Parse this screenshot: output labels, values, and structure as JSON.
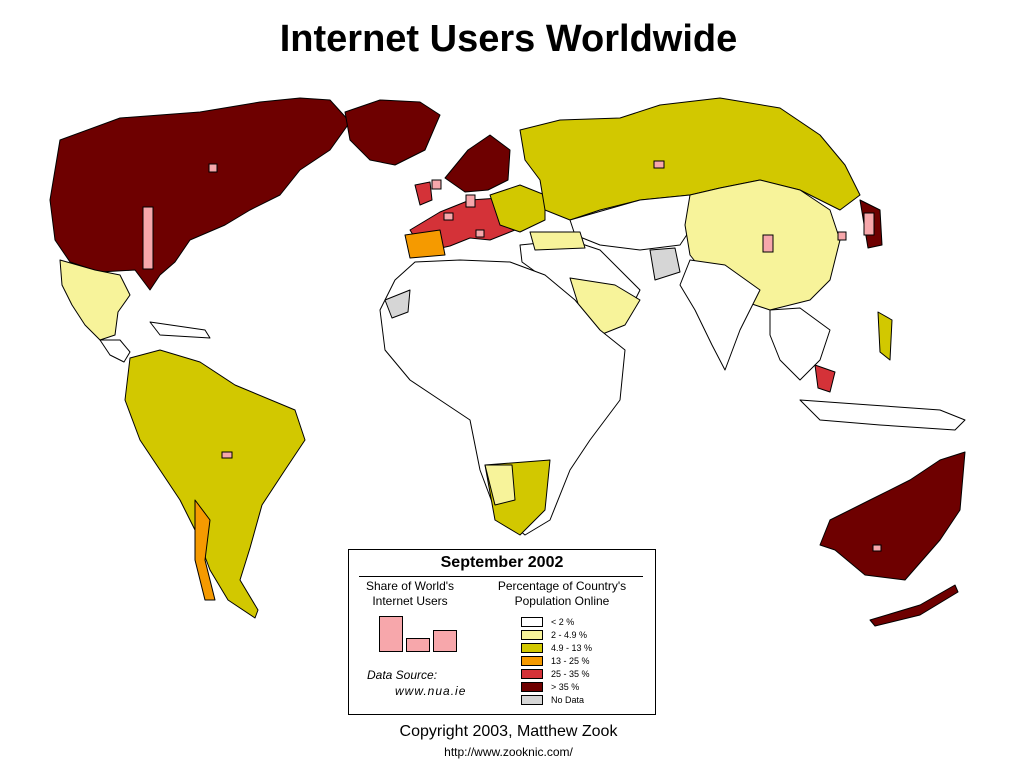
{
  "title": "Internet Users Worldwide",
  "legend": {
    "date": "September 2002",
    "share_heading": "Share of World's\nInternet Users",
    "pct_heading": "Percentage of Country's\nPopulation Online",
    "classes": [
      {
        "label": "< 2 %",
        "color": "#ffffff"
      },
      {
        "label": "2 - 4.9 %",
        "color": "#f7f39a"
      },
      {
        "label": "4.9 - 13 %",
        "color": "#d2c800"
      },
      {
        "label": "13 - 25 %",
        "color": "#f59a00"
      },
      {
        "label": "25 - 35 %",
        "color": "#d43238"
      },
      {
        "label": "> 35 %",
        "color": "#6e0000"
      },
      {
        "label": "No Data",
        "color": "#d6d6d6"
      }
    ],
    "data_source_label": "Data Source:",
    "data_source_url": "www.nua.ie"
  },
  "copyright": "Copyright 2003, Matthew Zook",
  "url": "http://www.zooknic.com/",
  "colors": {
    "outline": "#000000",
    "share_bar": "#f7a7ab"
  }
}
